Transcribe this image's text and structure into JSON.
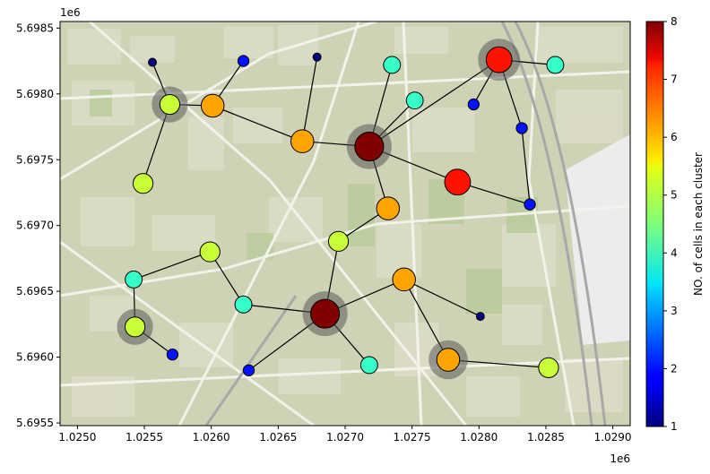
{
  "chart_data": {
    "type": "scatter",
    "title": "",
    "xlabel": "",
    "ylabel": "",
    "x_offset_label": "1e6",
    "y_offset_label": "1e6",
    "xlim": [
      1.02487,
      1.02913
    ],
    "ylim": [
      5.69548,
      5.69855
    ],
    "x_ticks": [
      {
        "value": 1.025,
        "label": "1.0250"
      },
      {
        "value": 1.0255,
        "label": "1.0255"
      },
      {
        "value": 1.026,
        "label": "1.0260"
      },
      {
        "value": 1.0265,
        "label": "1.0265"
      },
      {
        "value": 1.027,
        "label": "1.0270"
      },
      {
        "value": 1.0275,
        "label": "1.0275"
      },
      {
        "value": 1.028,
        "label": "1.0280"
      },
      {
        "value": 1.0285,
        "label": "1.0285"
      },
      {
        "value": 1.029,
        "label": "1.0290"
      }
    ],
    "y_ticks": [
      {
        "value": 5.6955,
        "label": "5.6955"
      },
      {
        "value": 5.696,
        "label": "5.6960"
      },
      {
        "value": 5.6965,
        "label": "5.6965"
      },
      {
        "value": 5.697,
        "label": "5.6970"
      },
      {
        "value": 5.6975,
        "label": "5.6975"
      },
      {
        "value": 5.698,
        "label": "5.6980"
      },
      {
        "value": 5.6985,
        "label": "5.6985"
      }
    ],
    "colorbar": {
      "label": "NO. of cells in each cluster",
      "min": 1,
      "max": 8,
      "ticks": [
        {
          "value": 1,
          "label": "1"
        },
        {
          "value": 2,
          "label": "2"
        },
        {
          "value": 3,
          "label": "3"
        },
        {
          "value": 4,
          "label": "4"
        },
        {
          "value": 5,
          "label": "5"
        },
        {
          "value": 6,
          "label": "6"
        },
        {
          "value": 7,
          "label": "7"
        },
        {
          "value": 8,
          "label": "8"
        }
      ],
      "colormap": "jet"
    },
    "points": [
      {
        "id": 0,
        "x": 1.02556,
        "y": 5.69824,
        "cells": 1,
        "hub": false
      },
      {
        "id": 1,
        "x": 1.02624,
        "y": 5.69825,
        "cells": 2,
        "hub": false
      },
      {
        "id": 2,
        "x": 1.02679,
        "y": 5.69828,
        "cells": 1,
        "hub": false
      },
      {
        "id": 3,
        "x": 1.02735,
        "y": 5.69822,
        "cells": 4,
        "hub": false
      },
      {
        "id": 4,
        "x": 1.02815,
        "y": 5.69826,
        "cells": 7,
        "hub": true
      },
      {
        "id": 5,
        "x": 1.02857,
        "y": 5.69822,
        "cells": 4,
        "hub": false
      },
      {
        "id": 6,
        "x": 1.02569,
        "y": 5.69792,
        "cells": 5,
        "hub": true
      },
      {
        "id": 7,
        "x": 1.02601,
        "y": 5.69791,
        "cells": 6,
        "hub": false
      },
      {
        "id": 8,
        "x": 1.02752,
        "y": 5.69795,
        "cells": 4,
        "hub": false
      },
      {
        "id": 9,
        "x": 1.02796,
        "y": 5.69792,
        "cells": 2,
        "hub": false
      },
      {
        "id": 10,
        "x": 1.02668,
        "y": 5.69764,
        "cells": 6,
        "hub": false
      },
      {
        "id": 11,
        "x": 1.02718,
        "y": 5.6976,
        "cells": 8,
        "hub": true
      },
      {
        "id": 12,
        "x": 1.02832,
        "y": 5.69774,
        "cells": 2,
        "hub": false
      },
      {
        "id": 13,
        "x": 1.02784,
        "y": 5.69733,
        "cells": 7,
        "hub": false
      },
      {
        "id": 14,
        "x": 1.02549,
        "y": 5.69732,
        "cells": 5,
        "hub": false
      },
      {
        "id": 15,
        "x": 1.02732,
        "y": 5.69713,
        "cells": 6,
        "hub": false
      },
      {
        "id": 16,
        "x": 1.02838,
        "y": 5.69716,
        "cells": 2,
        "hub": false
      },
      {
        "id": 17,
        "x": 1.02599,
        "y": 5.6968,
        "cells": 5,
        "hub": false
      },
      {
        "id": 18,
        "x": 1.02695,
        "y": 5.69688,
        "cells": 5,
        "hub": false
      },
      {
        "id": 19,
        "x": 1.02542,
        "y": 5.69659,
        "cells": 4,
        "hub": false
      },
      {
        "id": 20,
        "x": 1.02744,
        "y": 5.69659,
        "cells": 6,
        "hub": false
      },
      {
        "id": 21,
        "x": 1.02624,
        "y": 5.6964,
        "cells": 4,
        "hub": false
      },
      {
        "id": 22,
        "x": 1.02685,
        "y": 5.69633,
        "cells": 8,
        "hub": true
      },
      {
        "id": 23,
        "x": 1.02801,
        "y": 5.69631,
        "cells": 1,
        "hub": false
      },
      {
        "id": 24,
        "x": 1.02543,
        "y": 5.69623,
        "cells": 5,
        "hub": true
      },
      {
        "id": 25,
        "x": 1.02571,
        "y": 5.69602,
        "cells": 2,
        "hub": false
      },
      {
        "id": 26,
        "x": 1.02777,
        "y": 5.69598,
        "cells": 6,
        "hub": true
      },
      {
        "id": 27,
        "x": 1.02718,
        "y": 5.69594,
        "cells": 4,
        "hub": false
      },
      {
        "id": 28,
        "x": 1.02852,
        "y": 5.69592,
        "cells": 5,
        "hub": false
      },
      {
        "id": 29,
        "x": 1.02628,
        "y": 5.6959,
        "cells": 2,
        "hub": false
      }
    ],
    "edges": [
      [
        0,
        6
      ],
      [
        6,
        7
      ],
      [
        6,
        14
      ],
      [
        7,
        1
      ],
      [
        7,
        10
      ],
      [
        10,
        2
      ],
      [
        10,
        11
      ],
      [
        11,
        3
      ],
      [
        11,
        8
      ],
      [
        11,
        4
      ],
      [
        11,
        13
      ],
      [
        11,
        15
      ],
      [
        4,
        9
      ],
      [
        4,
        5
      ],
      [
        4,
        12
      ],
      [
        12,
        16
      ],
      [
        13,
        16
      ],
      [
        15,
        18
      ],
      [
        18,
        22
      ],
      [
        17,
        19
      ],
      [
        17,
        21
      ],
      [
        21,
        22
      ],
      [
        22,
        20
      ],
      [
        22,
        27
      ],
      [
        22,
        29
      ],
      [
        20,
        26
      ],
      [
        20,
        23
      ],
      [
        26,
        28
      ],
      [
        19,
        24
      ],
      [
        24,
        25
      ]
    ]
  }
}
